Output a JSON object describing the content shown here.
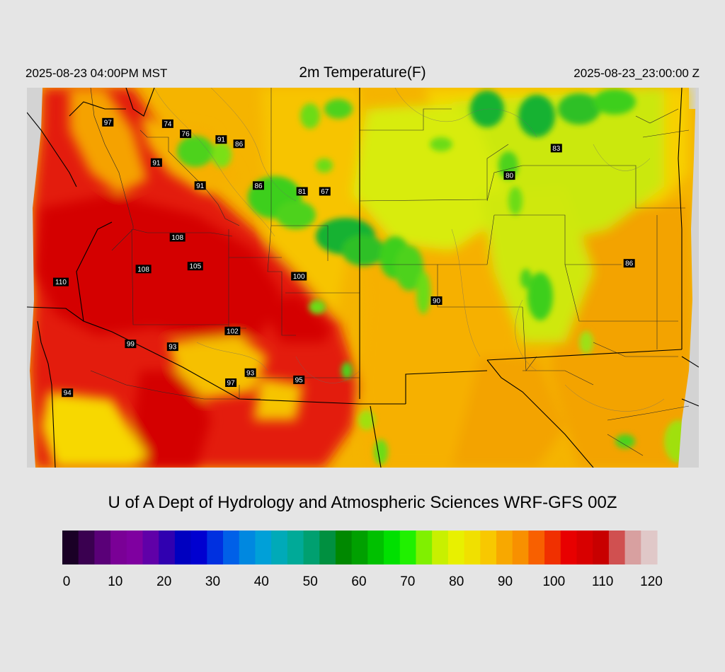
{
  "header": {
    "local_time": "2025-08-23 04:00PM MST",
    "title": "2m Temperature(F)",
    "valid_time": "2025-08-23_23:00:00 Z"
  },
  "credit": "U of A Dept of Hydrology and Atmospheric Sciences WRF-GFS 00Z",
  "colorbar": {
    "min": 0,
    "max": 120,
    "tick_labels": [
      "0",
      "10",
      "20",
      "30",
      "40",
      "50",
      "60",
      "70",
      "80",
      "90",
      "100",
      "110",
      "120"
    ],
    "colors": [
      "#1a0026",
      "#3a0050",
      "#5a0078",
      "#7a0096",
      "#7f00a0",
      "#6000a8",
      "#3000b0",
      "#0000c0",
      "#0000d0",
      "#0030e0",
      "#0060e8",
      "#0088e0",
      "#00a0d8",
      "#00aab8",
      "#00aa98",
      "#00a070",
      "#009040",
      "#008800",
      "#00a000",
      "#00c000",
      "#00e000",
      "#20f000",
      "#80f000",
      "#c8f000",
      "#e8f000",
      "#f0e000",
      "#f8c800",
      "#f8a800",
      "#f89000",
      "#f86000",
      "#f03000",
      "#e80000",
      "#d80000",
      "#c80000",
      "#d05050",
      "#d8a0a0",
      "#e0c8c8"
    ]
  },
  "map_colors": {
    "hot": "#e31a08",
    "very_hot": "#d40000",
    "warm": "#f5a400",
    "mild": "#f7d500",
    "cool": "#c6ec0a",
    "green": "#3ecf1a",
    "dark_green": "#12b233",
    "outside": "#d3d3d3"
  },
  "stations": [
    {
      "label": "97",
      "lon": -116.5,
      "lat": 48.0
    },
    {
      "label": "74",
      "lon": -112.8,
      "lat": 47.95
    },
    {
      "label": "76",
      "lon": -111.7,
      "lat": 47.6
    },
    {
      "label": "91",
      "lon": -109.5,
      "lat": 47.4
    },
    {
      "label": "86",
      "lon": -108.4,
      "lat": 47.25
    },
    {
      "label": "91",
      "lon": -113.5,
      "lat": 46.6
    },
    {
      "label": "91",
      "lon": -110.8,
      "lat": 45.8
    },
    {
      "label": "86",
      "lon": -107.2,
      "lat": 45.8
    },
    {
      "label": "81",
      "lon": -104.5,
      "lat": 45.6
    },
    {
      "label": "67",
      "lon": -103.1,
      "lat": 45.6
    },
    {
      "label": "108",
      "lon": -112.2,
      "lat": 44.0
    },
    {
      "label": "108",
      "lon": -114.3,
      "lat": 42.9
    },
    {
      "label": "105",
      "lon": -111.1,
      "lat": 43.0
    },
    {
      "label": "110",
      "lon": -119.4,
      "lat": 42.45
    },
    {
      "label": "100",
      "lon": -104.7,
      "lat": 42.65
    },
    {
      "label": "90",
      "lon": -96.2,
      "lat": 41.8
    },
    {
      "label": "102",
      "lon": -108.8,
      "lat": 40.75
    },
    {
      "label": "99",
      "lon": -115.1,
      "lat": 40.3
    },
    {
      "label": "93",
      "lon": -112.5,
      "lat": 40.2
    },
    {
      "label": "93",
      "lon": -107.7,
      "lat": 39.3
    },
    {
      "label": "97",
      "lon": -108.9,
      "lat": 38.95
    },
    {
      "label": "95",
      "lon": -104.7,
      "lat": 39.05
    },
    {
      "label": "94",
      "lon": -119.0,
      "lat": 38.6
    },
    {
      "label": "80",
      "lon": -91.7,
      "lat": 46.15
    },
    {
      "label": "83",
      "lon": -88.8,
      "lat": 47.1
    },
    {
      "label": "86",
      "lon": -84.3,
      "lat": 43.1
    }
  ]
}
